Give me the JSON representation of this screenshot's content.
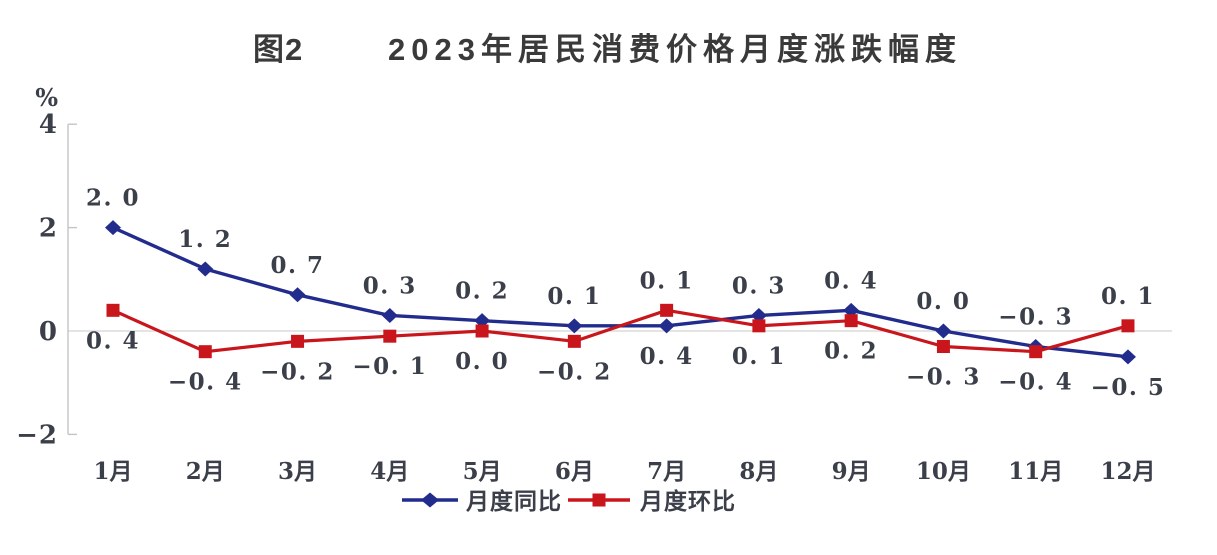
{
  "figure": {
    "tag": "图2",
    "title": "2023年居民消费价格月度涨跌幅度"
  },
  "chart_data": {
    "type": "line",
    "title": "2023年居民消费价格月度涨跌幅度",
    "unit_label": "%",
    "categories": [
      "1月",
      "2月",
      "3月",
      "4月",
      "5月",
      "6月",
      "7月",
      "8月",
      "9月",
      "10月",
      "11月",
      "12月"
    ],
    "series": [
      {
        "name": "月度同比",
        "marker": "diamond",
        "color": "#222C8D",
        "values": [
          2.0,
          1.2,
          0.7,
          0.3,
          0.2,
          0.1,
          0.1,
          0.3,
          0.4,
          0.0,
          -0.3,
          -0.5
        ]
      },
      {
        "name": "月度环比",
        "marker": "square",
        "color": "#C8161C",
        "values": [
          0.4,
          -0.4,
          -0.2,
          -0.1,
          0.0,
          -0.2,
          0.4,
          0.1,
          0.2,
          -0.3,
          -0.4,
          0.1
        ]
      }
    ],
    "yticks": [
      4,
      2,
      0,
      -2
    ],
    "ylim": [
      -2,
      4
    ],
    "grid": "zero-baseline-only",
    "legend_position": "bottom-center",
    "point_labels": "all-points-labeled"
  },
  "colors": {
    "label_text": "#3B3F49",
    "axis_line": "#C4C4C4",
    "zero_line": "#D4D4D4",
    "title_text": "#3A3A3A"
  }
}
